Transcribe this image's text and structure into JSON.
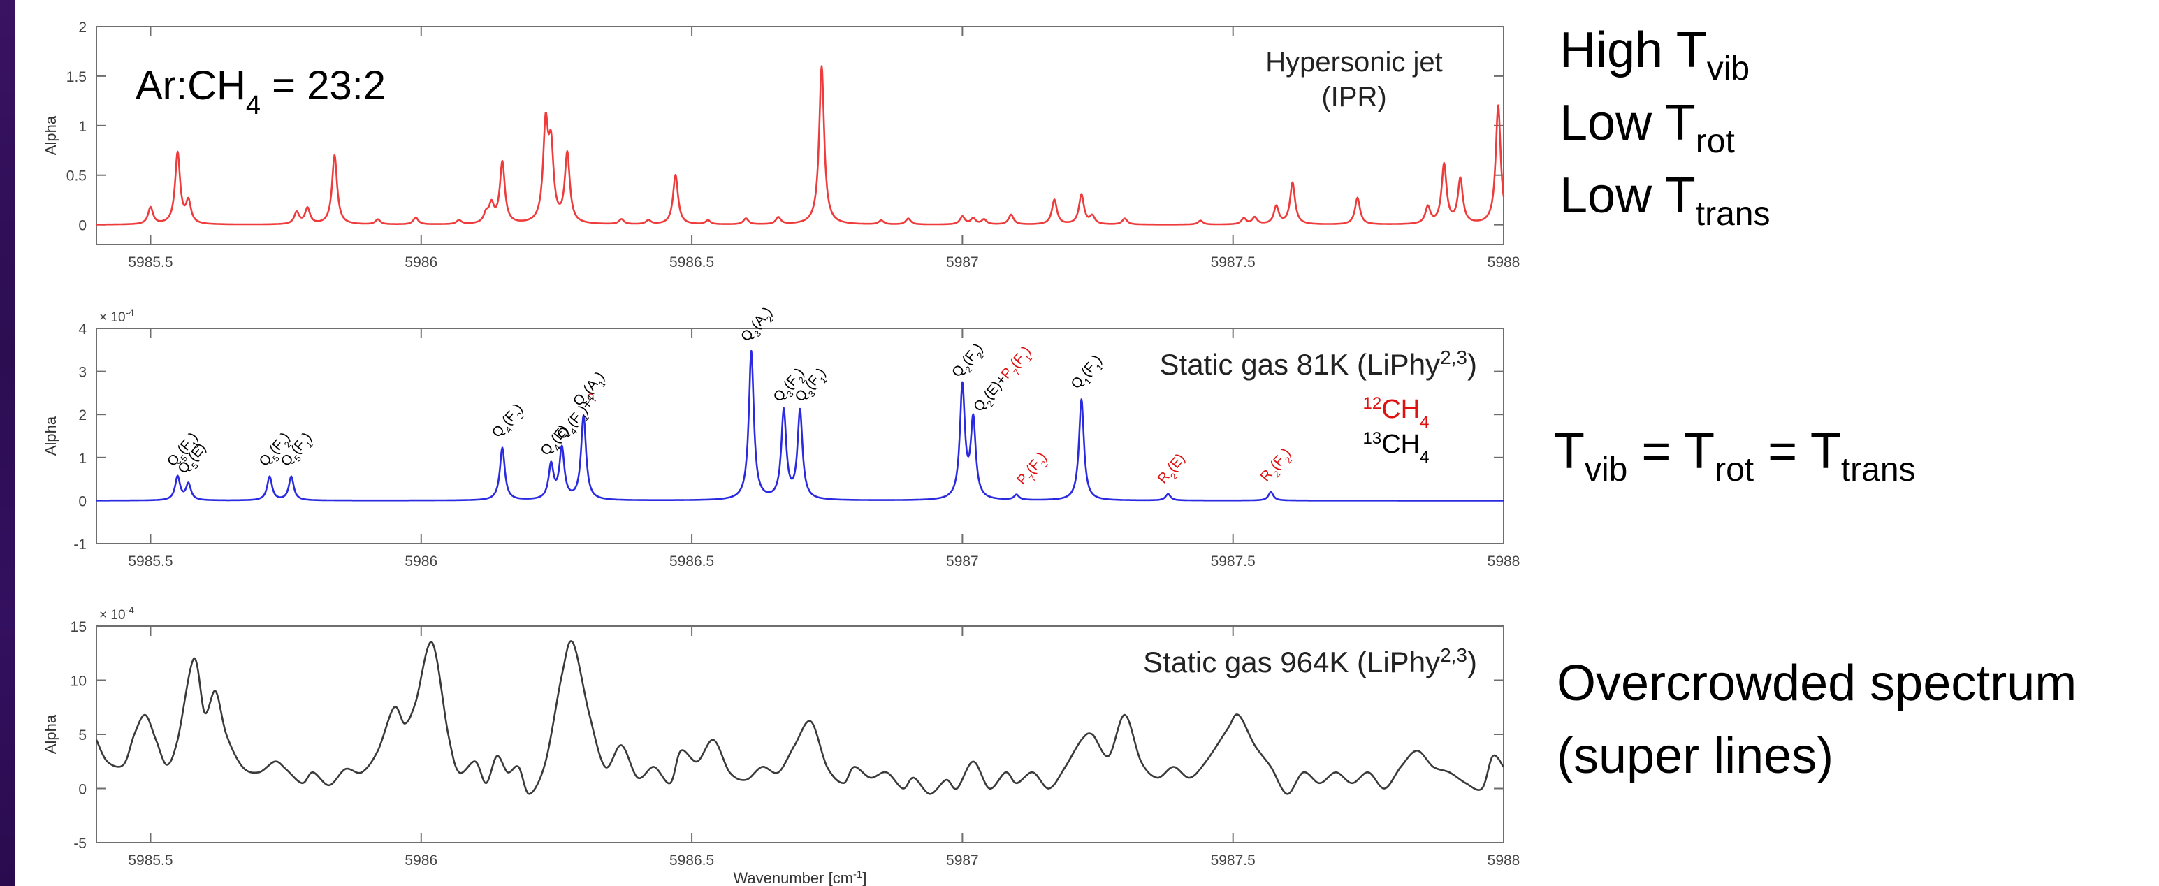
{
  "sidebar_notes": {
    "panel1": [
      {
        "main": "High T",
        "sub": "vib"
      },
      {
        "main": "Low T",
        "sub": "rot"
      },
      {
        "main": "Low T",
        "sub": "trans"
      }
    ],
    "panel2": {
      "t1": "T",
      "s1": "vib",
      "eq1": " = T",
      "s2": "rot",
      "eq2": " = T",
      "s3": "trans"
    },
    "panel3": [
      "Overcrowded spectrum",
      "(super lines)"
    ]
  },
  "chart_data": [
    {
      "type": "line",
      "title": "",
      "xlabel": "",
      "ylabel": "Alpha",
      "xlim": [
        5985.4,
        5988.0
      ],
      "ylim": [
        -0.2,
        2
      ],
      "yticks": [
        0,
        0.5,
        1,
        1.5,
        2
      ],
      "ytick_labels": [
        "0",
        "0.5",
        "1",
        "1.5",
        "2"
      ],
      "xticks": [
        5985.5,
        5986,
        5986.5,
        5987,
        5987.5,
        5988
      ],
      "xtick_labels": [
        "5985.5",
        "5986",
        "5986.5",
        "5987",
        "5987.5",
        "5988"
      ],
      "color": "#ee3b3b",
      "baseline": 0,
      "annotation_left": {
        "main": "Ar:CH",
        "sub": "4",
        "rest": " = 23:2"
      },
      "annotation_right": [
        "Hypersonic jet",
        "(IPR)"
      ],
      "peaks": [
        [
          5985.5,
          0.17
        ],
        [
          5985.55,
          0.72
        ],
        [
          5985.57,
          0.22
        ],
        [
          5985.77,
          0.12
        ],
        [
          5985.79,
          0.16
        ],
        [
          5985.84,
          0.7
        ],
        [
          5985.92,
          0.05
        ],
        [
          5985.99,
          0.07
        ],
        [
          5986.07,
          0.04
        ],
        [
          5986.12,
          0.09
        ],
        [
          5986.13,
          0.18
        ],
        [
          5986.15,
          0.62
        ],
        [
          5986.23,
          0.95
        ],
        [
          5986.24,
          0.7
        ],
        [
          5986.27,
          0.7
        ],
        [
          5986.37,
          0.05
        ],
        [
          5986.42,
          0.04
        ],
        [
          5986.47,
          0.5
        ],
        [
          5986.53,
          0.04
        ],
        [
          5986.6,
          0.06
        ],
        [
          5986.66,
          0.07
        ],
        [
          5986.74,
          1.6
        ],
        [
          5986.85,
          0.04
        ],
        [
          5986.9,
          0.06
        ],
        [
          5987.0,
          0.08
        ],
        [
          5987.02,
          0.06
        ],
        [
          5987.04,
          0.05
        ],
        [
          5987.09,
          0.1
        ],
        [
          5987.17,
          0.25
        ],
        [
          5987.22,
          0.3
        ],
        [
          5987.24,
          0.08
        ],
        [
          5987.3,
          0.06
        ],
        [
          5987.44,
          0.04
        ],
        [
          5987.52,
          0.06
        ],
        [
          5987.54,
          0.07
        ],
        [
          5987.58,
          0.18
        ],
        [
          5987.61,
          0.42
        ],
        [
          5987.73,
          0.27
        ],
        [
          5987.86,
          0.17
        ],
        [
          5987.89,
          0.6
        ],
        [
          5987.92,
          0.45
        ],
        [
          5987.99,
          1.2
        ]
      ]
    },
    {
      "type": "line",
      "title": "",
      "xlabel": "",
      "ylabel": "Alpha",
      "xlim": [
        5985.4,
        5988.0
      ],
      "ylim": [
        -1,
        4
      ],
      "exponent": "× 10-4",
      "yticks": [
        -1,
        0,
        1,
        2,
        3,
        4
      ],
      "ytick_labels": [
        "-1",
        "0",
        "1",
        "2",
        "3",
        "4"
      ],
      "xticks": [
        5985.5,
        5986,
        5986.5,
        5987,
        5987.5,
        5988
      ],
      "xtick_labels": [
        "5985.5",
        "5986",
        "5986.5",
        "5987",
        "5987.5",
        "5988"
      ],
      "color": "#2a2ae0",
      "baseline": 0,
      "annotation_right": {
        "main": "Static gas 81K (LiPhy",
        "sup": "2,3",
        "close": ")"
      },
      "legend": [
        {
          "pre": "12",
          "label": "CH",
          "sub": "4",
          "color": "#e01010"
        },
        {
          "pre": "13",
          "label": "CH",
          "sub": "4",
          "color": "#000000"
        }
      ],
      "peaks": [
        [
          5985.55,
          0.55
        ],
        [
          5985.57,
          0.38
        ],
        [
          5985.72,
          0.55
        ],
        [
          5985.76,
          0.55
        ],
        [
          5986.15,
          1.22
        ],
        [
          5986.24,
          0.8
        ],
        [
          5986.26,
          1.18
        ],
        [
          5986.3,
          1.95
        ],
        [
          5986.61,
          3.45
        ],
        [
          5986.67,
          2.05
        ],
        [
          5986.7,
          2.05
        ],
        [
          5987.0,
          2.62
        ],
        [
          5987.02,
          1.82
        ],
        [
          5987.1,
          0.12
        ],
        [
          5987.22,
          2.35
        ],
        [
          5987.38,
          0.15
        ],
        [
          5987.57,
          0.2
        ]
      ],
      "peak_labels": [
        {
          "x": 5985.55,
          "y": 0.55,
          "text": "Q5(F1)",
          "color": "#000000"
        },
        {
          "x": 5985.57,
          "y": 0.38,
          "text": "Q5(E)",
          "color": "#000000"
        },
        {
          "x": 5985.72,
          "y": 0.55,
          "text": "Q5(F2)",
          "color": "#000000"
        },
        {
          "x": 5985.76,
          "y": 0.55,
          "text": "Q5(F1)",
          "color": "#000000"
        },
        {
          "x": 5986.15,
          "y": 1.22,
          "text": "Q4(F2)",
          "color": "#000000"
        },
        {
          "x": 5986.24,
          "y": 0.8,
          "text": "Q4(E)",
          "color": "#000000"
        },
        {
          "x": 5986.27,
          "y": 1.18,
          "text": "Q4(F1)+?",
          "color": "#000000"
        },
        {
          "x": 5986.3,
          "y": 1.95,
          "text": "Q4(A1)",
          "color": "#000000"
        },
        {
          "x": 5986.61,
          "y": 3.45,
          "text": "Q3(A2)",
          "color": "#000000"
        },
        {
          "x": 5986.67,
          "y": 2.05,
          "text": "Q3(F2)",
          "color": "#000000"
        },
        {
          "x": 5986.71,
          "y": 2.05,
          "text": "Q3(F1)",
          "color": "#000000"
        },
        {
          "x": 5987.0,
          "y": 2.62,
          "text": "Q2(F2)",
          "color": "#000000"
        },
        {
          "x": 5987.04,
          "y": 1.82,
          "text": "Q2(E)+P7(F1)",
          "color": "#000000"
        },
        {
          "x": 5987.12,
          "y": 0.12,
          "text": "P7(F2)",
          "color": "#e01010"
        },
        {
          "x": 5987.22,
          "y": 2.35,
          "text": "Q1(F1)",
          "color": "#000000"
        },
        {
          "x": 5987.38,
          "y": 0.15,
          "text": "R2(E)",
          "color": "#e01010"
        },
        {
          "x": 5987.57,
          "y": 0.2,
          "text": "R2(F2)",
          "color": "#e01010"
        }
      ]
    },
    {
      "type": "line",
      "title": "",
      "xlabel": "Wavenumber [cm-1]",
      "ylabel": "Alpha",
      "xlim": [
        5985.4,
        5988.0
      ],
      "ylim": [
        -5,
        15
      ],
      "exponent": "× 10-4",
      "yticks": [
        -5,
        0,
        5,
        10,
        15
      ],
      "ytick_labels": [
        "-5",
        "0",
        "5",
        "10",
        "15"
      ],
      "xticks": [
        5985.5,
        5986,
        5986.5,
        5987,
        5987.5,
        5988
      ],
      "xtick_labels": [
        "5985.5",
        "5986",
        "5986.5",
        "5987",
        "5987.5",
        "5988"
      ],
      "color": "#3a3a3a",
      "annotation_right": {
        "main": "Static gas 964K (LiPhy",
        "sup": "2,3",
        "close": ")"
      },
      "points": [
        [
          5985.4,
          4.5
        ],
        [
          5985.42,
          2.5
        ],
        [
          5985.45,
          2.2
        ],
        [
          5985.47,
          5.0
        ],
        [
          5985.49,
          6.8
        ],
        [
          5985.51,
          4.5
        ],
        [
          5985.53,
          2.2
        ],
        [
          5985.55,
          4.5
        ],
        [
          5985.58,
          12.0
        ],
        [
          5985.6,
          7.0
        ],
        [
          5985.62,
          9.0
        ],
        [
          5985.64,
          5.0
        ],
        [
          5985.67,
          2.0
        ],
        [
          5985.7,
          1.5
        ],
        [
          5985.73,
          2.5
        ],
        [
          5985.75,
          1.8
        ],
        [
          5985.78,
          0.5
        ],
        [
          5985.8,
          1.5
        ],
        [
          5985.83,
          0.3
        ],
        [
          5985.86,
          1.8
        ],
        [
          5985.89,
          1.5
        ],
        [
          5985.92,
          3.5
        ],
        [
          5985.95,
          7.5
        ],
        [
          5985.97,
          6.0
        ],
        [
          5985.99,
          8.0
        ],
        [
          5986.02,
          13.5
        ],
        [
          5986.05,
          5.0
        ],
        [
          5986.07,
          1.5
        ],
        [
          5986.1,
          2.5
        ],
        [
          5986.12,
          0.5
        ],
        [
          5986.14,
          3.0
        ],
        [
          5986.16,
          1.5
        ],
        [
          5986.18,
          2.0
        ],
        [
          5986.2,
          -0.5
        ],
        [
          5986.23,
          2.5
        ],
        [
          5986.26,
          10.5
        ],
        [
          5986.28,
          13.5
        ],
        [
          5986.31,
          7.0
        ],
        [
          5986.34,
          2.0
        ],
        [
          5986.37,
          4.0
        ],
        [
          5986.4,
          1.0
        ],
        [
          5986.43,
          2.0
        ],
        [
          5986.46,
          0.5
        ],
        [
          5986.48,
          3.5
        ],
        [
          5986.51,
          2.5
        ],
        [
          5986.54,
          4.5
        ],
        [
          5986.57,
          1.5
        ],
        [
          5986.6,
          0.8
        ],
        [
          5986.63,
          2.0
        ],
        [
          5986.66,
          1.5
        ],
        [
          5986.69,
          4.0
        ],
        [
          5986.72,
          6.2
        ],
        [
          5986.75,
          2.0
        ],
        [
          5986.78,
          0.5
        ],
        [
          5986.8,
          2.0
        ],
        [
          5986.83,
          1.0
        ],
        [
          5986.86,
          1.5
        ],
        [
          5986.89,
          0.0
        ],
        [
          5986.91,
          1.0
        ],
        [
          5986.94,
          -0.5
        ],
        [
          5986.97,
          0.8
        ],
        [
          5986.99,
          0.0
        ],
        [
          5987.02,
          2.5
        ],
        [
          5987.05,
          0.0
        ],
        [
          5987.08,
          1.5
        ],
        [
          5987.1,
          0.5
        ],
        [
          5987.13,
          1.5
        ],
        [
          5987.16,
          0.0
        ],
        [
          5987.19,
          2.0
        ],
        [
          5987.22,
          4.5
        ],
        [
          5987.24,
          5.0
        ],
        [
          5987.27,
          3.0
        ],
        [
          5987.3,
          6.8
        ],
        [
          5987.33,
          2.5
        ],
        [
          5987.36,
          1.0
        ],
        [
          5987.39,
          2.0
        ],
        [
          5987.42,
          1.0
        ],
        [
          5987.45,
          2.5
        ],
        [
          5987.49,
          5.5
        ],
        [
          5987.51,
          6.8
        ],
        [
          5987.54,
          4.0
        ],
        [
          5987.57,
          2.0
        ],
        [
          5987.6,
          -0.5
        ],
        [
          5987.63,
          1.5
        ],
        [
          5987.66,
          0.5
        ],
        [
          5987.69,
          1.5
        ],
        [
          5987.72,
          0.5
        ],
        [
          5987.75,
          1.5
        ],
        [
          5987.78,
          0.0
        ],
        [
          5987.81,
          2.0
        ],
        [
          5987.84,
          3.5
        ],
        [
          5987.87,
          2.0
        ],
        [
          5987.9,
          1.5
        ],
        [
          5987.93,
          0.5
        ],
        [
          5987.96,
          0.0
        ],
        [
          5987.98,
          3.0
        ],
        [
          5988.0,
          2.0
        ]
      ]
    }
  ]
}
